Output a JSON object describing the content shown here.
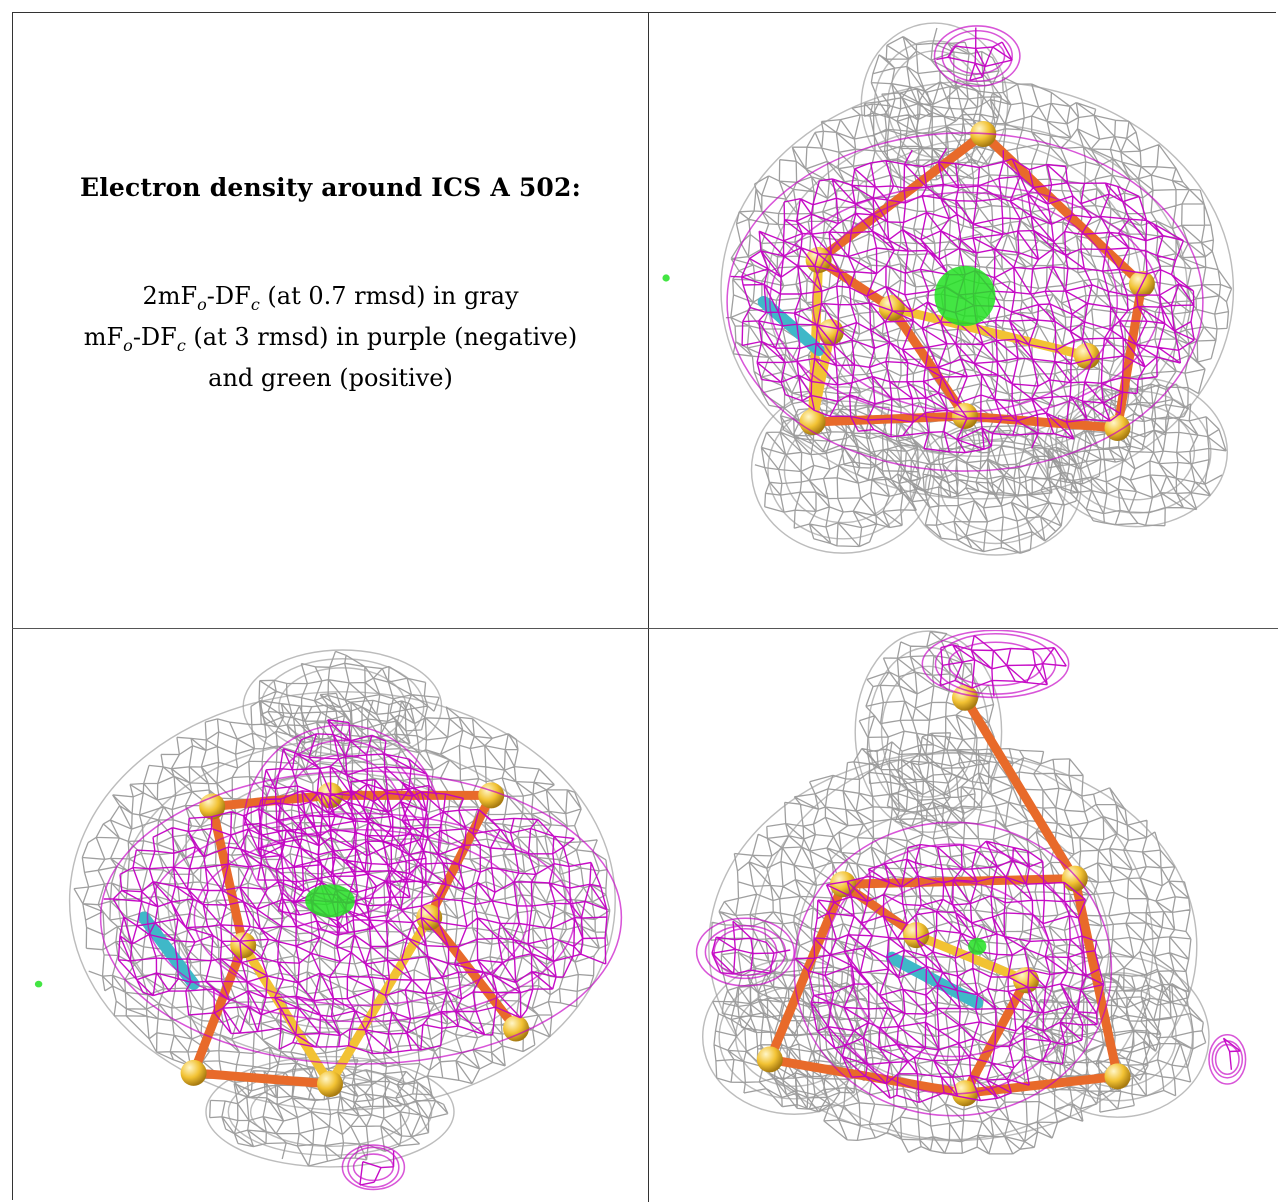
{
  "caption": {
    "title": "Electron density around ICS A 502:",
    "line1": {
      "prefix": "2mF",
      "sub1": "o",
      "mid": "-DF",
      "sub2": "c",
      "suffix": " (at 0.7 rmsd) in gray"
    },
    "line2": {
      "prefix": "mF",
      "sub1": "o",
      "mid": "-DF",
      "sub2": "c",
      "suffix": " (at 3 rmsd) in purple (negative)"
    },
    "line3": "and green (positive)"
  },
  "colors": {
    "map_2fofc": "#9a9a9a",
    "map_negative": "#c400c4",
    "map_positive": "#22e022",
    "sulfur": "#f2c233",
    "iron": "#e86a2a",
    "carbon": "#3fb8c8",
    "grid_lines": "#333333"
  },
  "panels": [
    {
      "view": "top-right"
    },
    {
      "view": "bottom-left"
    },
    {
      "view": "bottom-right"
    }
  ]
}
